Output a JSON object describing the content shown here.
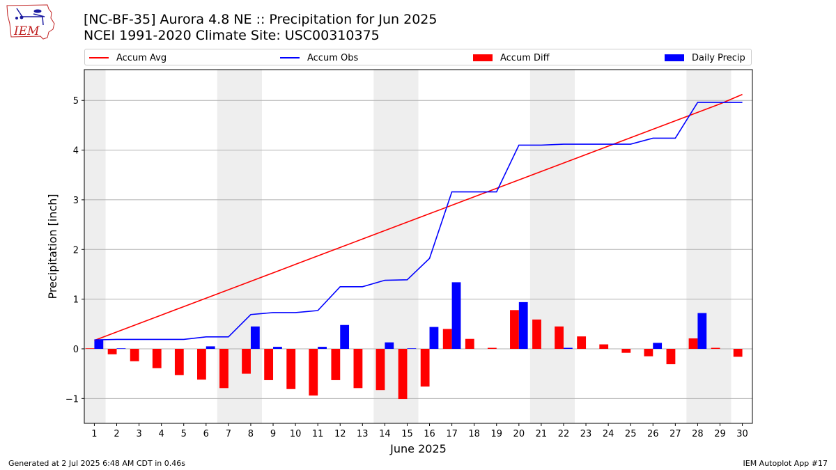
{
  "header": {
    "title_line1": "[NC-BF-35] Aurora 4.8 NE :: Precipitation for Jun 2025",
    "title_line2": "NCEI 1991-2020 Climate Site: USC00310375",
    "logo_text": "IEM"
  },
  "footer": {
    "left": "Generated at 2 Jul 2025 6:48 AM CDT in 0.46s",
    "right": "IEM Autoplot App #17"
  },
  "legend": [
    {
      "label": "Accum Avg",
      "kind": "line",
      "color": "#ff0000"
    },
    {
      "label": "Accum Obs",
      "kind": "line",
      "color": "#0000ff"
    },
    {
      "label": "Accum Diff",
      "kind": "bar",
      "color": "#ff0000"
    },
    {
      "label": "Daily Precip",
      "kind": "bar",
      "color": "#0000ff"
    }
  ],
  "chart_data": {
    "type": "bar",
    "xlabel": "June 2025",
    "ylabel": "Precipitation [inch]",
    "ylim": [
      -1.5,
      5.62
    ],
    "yticks": [
      -1,
      0,
      1,
      2,
      3,
      4,
      5
    ],
    "ytick_labels": [
      "−1",
      "0",
      "1",
      "2",
      "3",
      "4",
      "5"
    ],
    "grid": "horizontal",
    "legend_position": "top",
    "weekend_shading": [
      [
        1,
        1
      ],
      [
        7,
        8
      ],
      [
        14,
        15
      ],
      [
        21,
        22
      ],
      [
        28,
        29
      ]
    ],
    "shade_color": "#eeeeee",
    "days": [
      1,
      2,
      3,
      4,
      5,
      6,
      7,
      8,
      9,
      10,
      11,
      12,
      13,
      14,
      15,
      16,
      17,
      18,
      19,
      20,
      21,
      22,
      23,
      24,
      25,
      26,
      27,
      28,
      29,
      30
    ],
    "series": [
      {
        "name": "Accum Avg",
        "kind": "line",
        "color": "#ff0000",
        "values": [
          0.17,
          0.34,
          0.51,
          0.68,
          0.85,
          1.02,
          1.19,
          1.36,
          1.53,
          1.7,
          1.87,
          2.04,
          2.21,
          2.38,
          2.55,
          2.72,
          2.89,
          3.06,
          3.23,
          3.4,
          3.57,
          3.74,
          3.91,
          4.08,
          4.25,
          4.42,
          4.59,
          4.76,
          4.93,
          5.12
        ]
      },
      {
        "name": "Accum Obs",
        "kind": "line",
        "color": "#0000ff",
        "values": [
          0.18,
          0.19,
          0.19,
          0.19,
          0.19,
          0.24,
          0.24,
          0.69,
          0.73,
          0.73,
          0.77,
          1.25,
          1.25,
          1.38,
          1.39,
          1.82,
          3.16,
          3.16,
          3.16,
          4.1,
          4.1,
          4.12,
          4.12,
          4.12,
          4.12,
          4.24,
          4.24,
          4.96,
          4.96,
          4.96
        ]
      },
      {
        "name": "Accum Diff",
        "kind": "bar",
        "color": "#ff0000",
        "values": [
          0.01,
          -0.11,
          -0.25,
          -0.39,
          -0.53,
          -0.62,
          -0.79,
          -0.5,
          -0.63,
          -0.81,
          -0.94,
          -0.63,
          -0.79,
          -0.83,
          -1.01,
          -0.76,
          0.4,
          0.2,
          0.02,
          0.78,
          0.59,
          0.45,
          0.25,
          0.09,
          -0.08,
          -0.15,
          -0.31,
          0.21,
          0.02,
          -0.16
        ]
      },
      {
        "name": "Daily Precip",
        "kind": "bar",
        "color": "#0000ff",
        "values": [
          0.18,
          0.01,
          0,
          0,
          0,
          0.05,
          0,
          0.45,
          0.04,
          0,
          0.04,
          0.48,
          0,
          0.13,
          0.01,
          0.44,
          1.34,
          0,
          0,
          0.94,
          0,
          0.02,
          0,
          0,
          0,
          0.12,
          0,
          0.72,
          0,
          0
        ]
      }
    ]
  }
}
